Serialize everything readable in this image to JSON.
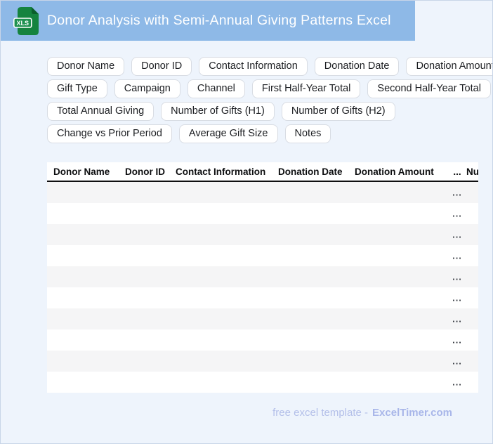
{
  "header": {
    "title": "Donor Analysis with Semi-Annual Giving Patterns Excel",
    "file_badge": "XLS"
  },
  "chips": {
    "rows": [
      [
        "Donor Name",
        "Donor ID",
        "Contact Information",
        "Donation Date",
        "Donation Amount"
      ],
      [
        "Gift Type",
        "Campaign",
        "Channel",
        "First Half-Year Total",
        "Second Half-Year Total"
      ],
      [
        "Total Annual Giving",
        "Number of Gifts (H1)",
        "Number of Gifts (H2)"
      ],
      [
        "Change vs Prior Period",
        "Average Gift Size",
        "Notes"
      ]
    ]
  },
  "table": {
    "columns": [
      "Donor Name",
      "Donor ID",
      "Contact Information",
      "Donation Date",
      "Donation Amount",
      "...",
      "Nu"
    ],
    "row_count": 10,
    "cell_placeholder": "..."
  },
  "footer": {
    "text": "free excel template -",
    "brand": "ExcelTimer.com"
  },
  "colors": {
    "header_bar": "#8eb9e7",
    "page_bg": "#eef4fc",
    "page_border": "#c8d5e8",
    "chip_border": "#d8dce3",
    "stripe": "#f5f5f6",
    "icon_green": "#15833f",
    "icon_fold": "#0a5f2c",
    "badge_green": "#1e9150",
    "footer_text": "#b3bfe9",
    "footer_brand": "#a8b6e9"
  }
}
